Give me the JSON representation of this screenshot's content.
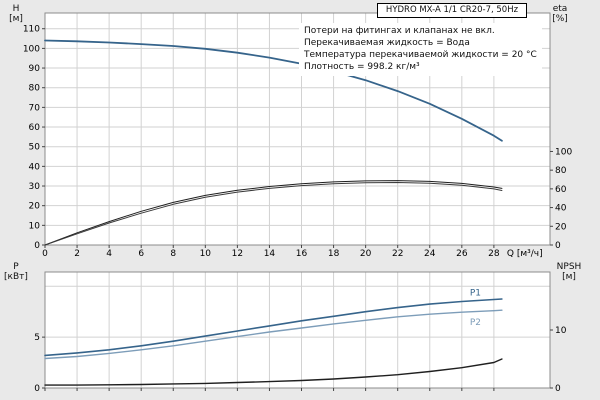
{
  "title_box": {
    "text": "HYDRO MX-A 1/1 CR20-7, 50Hz"
  },
  "annotations": [
    "Потери на фитингах и клапанах не вкл.",
    "Перекачиваемая жидкость = Вода",
    "Температура перекачиваемой жидкости = 20 °C",
    "Плотность = 998.2 кг/м³"
  ],
  "axis_corner_labels": {
    "h": "H",
    "h_unit": "[м]",
    "eta": "eta",
    "eta_unit": "[%]",
    "p": "P",
    "p_unit": "[кВт]",
    "npsh": "NPSH",
    "npsh_unit": "[м]"
  },
  "colors": {
    "page_bg": "#e9e9e9",
    "plot_bg": "#ffffff",
    "grid": "#d2d2d2",
    "border": "#8c8c8c",
    "curve_blue": "#36648b",
    "curve_light_blue": "#7d9db9",
    "curve_black": "#1f1f1f"
  },
  "chart_data": [
    {
      "type": "line",
      "title": "HYDRO MX-A 1/1 CR20-7, 50Hz",
      "xlabel": "Q [м³/ч]",
      "ylabel_left": "H [м]",
      "ylabel_right": "eta [%]",
      "xlim": [
        0,
        31.5
      ],
      "x_ticks": [
        0,
        2,
        4,
        6,
        8,
        10,
        12,
        14,
        16,
        18,
        20,
        22,
        24,
        26,
        28
      ],
      "show_x_tick_labels": true,
      "ylim_left": [
        0,
        118
      ],
      "y_ticks_left": [
        0,
        10,
        20,
        30,
        40,
        50,
        60,
        70,
        80,
        90,
        100,
        110
      ],
      "ylim_right": [
        0,
        248
      ],
      "y_ticks_right": [
        0,
        20,
        40,
        60,
        80,
        100
      ],
      "grid": true,
      "series": [
        {
          "name": "H",
          "axis": "left",
          "color": "#36648b",
          "width": 1.8,
          "x": [
            0,
            2,
            4,
            6,
            8,
            10,
            12,
            14,
            16,
            18,
            20,
            22,
            24,
            26,
            28,
            28.5
          ],
          "y": [
            104,
            103.6,
            103,
            102.2,
            101.2,
            99.8,
            97.8,
            95.3,
            92.2,
            88.4,
            83.8,
            78.3,
            71.8,
            64.2,
            55.6,
            53
          ]
        },
        {
          "name": "eta1",
          "axis": "right",
          "color": "#1f1f1f",
          "width": 1,
          "x": [
            0,
            2,
            4,
            6,
            8,
            10,
            12,
            14,
            16,
            18,
            20,
            22,
            24,
            26,
            28,
            28.5
          ],
          "y": [
            0,
            13,
            25,
            36,
            45.5,
            53,
            58.5,
            62.5,
            65.5,
            67.5,
            68.5,
            68.8,
            68,
            65.8,
            62,
            60.5
          ]
        },
        {
          "name": "eta2",
          "axis": "right",
          "color": "#3a3a3a",
          "width": 1,
          "x": [
            0,
            2,
            4,
            6,
            8,
            10,
            12,
            14,
            16,
            18,
            20,
            22,
            24,
            26,
            28,
            28.5
          ],
          "y": [
            0,
            12,
            23.5,
            34,
            43.5,
            51,
            56.5,
            60.5,
            63.5,
            65.5,
            66.5,
            66.8,
            66,
            63.8,
            60,
            58.3
          ]
        }
      ]
    },
    {
      "type": "line",
      "title": "",
      "xlabel": "",
      "ylabel_left": "P [кВт]",
      "ylabel_right": "NPSH [м]",
      "xlim": [
        0,
        31.5
      ],
      "x_ticks": [
        0,
        2,
        4,
        6,
        8,
        10,
        12,
        14,
        16,
        18,
        20,
        22,
        24,
        26,
        28
      ],
      "show_x_tick_labels": false,
      "ylim_left": [
        0,
        11.4
      ],
      "y_ticks_left": [
        0,
        5
      ],
      "grid_y": [
        5,
        10
      ],
      "ylim_right": [
        0,
        20
      ],
      "y_ticks_right": [
        0,
        10
      ],
      "grid": true,
      "series": [
        {
          "name": "P1",
          "axis": "left",
          "color": "#36648b",
          "width": 1.6,
          "label": "P1",
          "label_dy": -6,
          "x": [
            0,
            2,
            4,
            6,
            8,
            10,
            12,
            14,
            16,
            18,
            20,
            22,
            24,
            26,
            28,
            28.5
          ],
          "y": [
            3.2,
            3.45,
            3.75,
            4.15,
            4.6,
            5.1,
            5.6,
            6.1,
            6.6,
            7.05,
            7.5,
            7.9,
            8.25,
            8.5,
            8.7,
            8.75
          ]
        },
        {
          "name": "P2",
          "axis": "left",
          "color": "#7d9db9",
          "width": 1.4,
          "label": "P2",
          "label_dy": 13,
          "x": [
            0,
            2,
            4,
            6,
            8,
            10,
            12,
            14,
            16,
            18,
            20,
            22,
            24,
            26,
            28,
            28.5
          ],
          "y": [
            2.9,
            3.1,
            3.4,
            3.75,
            4.15,
            4.6,
            5.05,
            5.5,
            5.9,
            6.3,
            6.65,
            7.0,
            7.25,
            7.45,
            7.6,
            7.65
          ]
        },
        {
          "name": "NPSH",
          "axis": "right",
          "color": "#1f1f1f",
          "width": 1.4,
          "x": [
            0,
            2,
            4,
            6,
            8,
            10,
            12,
            14,
            16,
            18,
            20,
            22,
            24,
            26,
            28,
            28.5
          ],
          "y": [
            0.5,
            0.5,
            0.55,
            0.6,
            0.7,
            0.8,
            0.95,
            1.1,
            1.3,
            1.55,
            1.9,
            2.3,
            2.85,
            3.5,
            4.4,
            5.0
          ]
        }
      ]
    }
  ]
}
